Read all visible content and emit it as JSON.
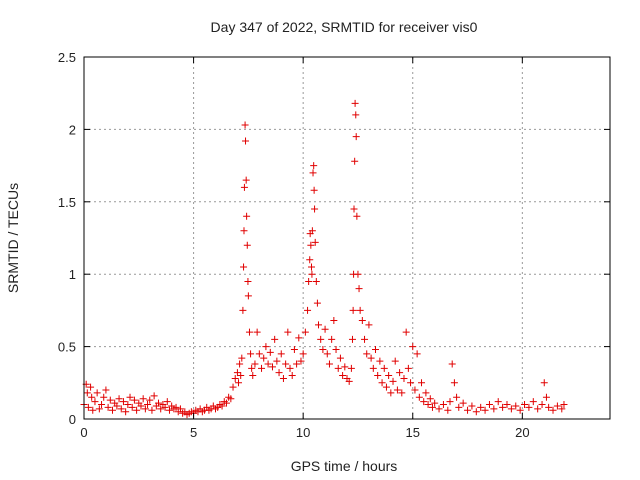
{
  "chart_data": {
    "type": "scatter",
    "title": "Day 347 of 2022, SRMTID for receiver vis0",
    "xlabel": "GPS time / hours",
    "ylabel": "SRMTID / TECUs",
    "xlim": [
      0,
      24
    ],
    "ylim": [
      0,
      2.5
    ],
    "xticks": [
      0,
      5,
      10,
      15,
      20
    ],
    "yticks": [
      0,
      0.5,
      1,
      1.5,
      2,
      2.5
    ],
    "x_tick_labels": [
      "0",
      "5",
      "10",
      "15",
      "20"
    ],
    "y_tick_labels": [
      "0",
      "0.5",
      "1",
      "1.5",
      "2",
      "2.5"
    ],
    "grid": true,
    "marker": "+",
    "color": "#e00000",
    "series": [
      {
        "name": "SRMTID",
        "points": [
          [
            0.0,
            0.1
          ],
          [
            0.1,
            0.24
          ],
          [
            0.15,
            0.18
          ],
          [
            0.2,
            0.08
          ],
          [
            0.3,
            0.22
          ],
          [
            0.35,
            0.15
          ],
          [
            0.4,
            0.06
          ],
          [
            0.5,
            0.12
          ],
          [
            0.6,
            0.18
          ],
          [
            0.7,
            0.07
          ],
          [
            0.8,
            0.1
          ],
          [
            0.9,
            0.15
          ],
          [
            1.0,
            0.2
          ],
          [
            1.1,
            0.08
          ],
          [
            1.2,
            0.13
          ],
          [
            1.3,
            0.06
          ],
          [
            1.4,
            0.11
          ],
          [
            1.5,
            0.09
          ],
          [
            1.6,
            0.14
          ],
          [
            1.7,
            0.07
          ],
          [
            1.8,
            0.12
          ],
          [
            1.9,
            0.05
          ],
          [
            2.0,
            0.1
          ],
          [
            2.1,
            0.15
          ],
          [
            2.2,
            0.08
          ],
          [
            2.3,
            0.13
          ],
          [
            2.4,
            0.06
          ],
          [
            2.5,
            0.11
          ],
          [
            2.6,
            0.09
          ],
          [
            2.7,
            0.14
          ],
          [
            2.8,
            0.07
          ],
          [
            2.9,
            0.1
          ],
          [
            3.0,
            0.13
          ],
          [
            3.1,
            0.06
          ],
          [
            3.2,
            0.16
          ],
          [
            3.3,
            0.09
          ],
          [
            3.4,
            0.11
          ],
          [
            3.5,
            0.07
          ],
          [
            3.6,
            0.1
          ],
          [
            3.7,
            0.08
          ],
          [
            3.8,
            0.12
          ],
          [
            3.9,
            0.06
          ],
          [
            4.0,
            0.09
          ],
          [
            4.1,
            0.07
          ],
          [
            4.2,
            0.08
          ],
          [
            4.3,
            0.05
          ],
          [
            4.4,
            0.07
          ],
          [
            4.5,
            0.04
          ],
          [
            4.6,
            0.05
          ],
          [
            4.7,
            0.03
          ],
          [
            4.8,
            0.04
          ],
          [
            4.9,
            0.05
          ],
          [
            5.0,
            0.04
          ],
          [
            5.1,
            0.06
          ],
          [
            5.2,
            0.05
          ],
          [
            5.3,
            0.07
          ],
          [
            5.4,
            0.05
          ],
          [
            5.5,
            0.06
          ],
          [
            5.6,
            0.08
          ],
          [
            5.7,
            0.06
          ],
          [
            5.8,
            0.07
          ],
          [
            5.9,
            0.09
          ],
          [
            6.0,
            0.07
          ],
          [
            6.1,
            0.08
          ],
          [
            6.2,
            0.1
          ],
          [
            6.3,
            0.09
          ],
          [
            6.4,
            0.12
          ],
          [
            6.5,
            0.11
          ],
          [
            6.6,
            0.15
          ],
          [
            6.7,
            0.14
          ],
          [
            6.8,
            0.22
          ],
          [
            6.9,
            0.28
          ],
          [
            7.0,
            0.32
          ],
          [
            7.05,
            0.25
          ],
          [
            7.1,
            0.38
          ],
          [
            7.15,
            0.3
          ],
          [
            7.2,
            0.42
          ],
          [
            7.25,
            0.75
          ],
          [
            7.28,
            1.05
          ],
          [
            7.3,
            1.3
          ],
          [
            7.32,
            1.6
          ],
          [
            7.35,
            2.03
          ],
          [
            7.37,
            1.92
          ],
          [
            7.4,
            1.65
          ],
          [
            7.42,
            1.4
          ],
          [
            7.45,
            1.2
          ],
          [
            7.48,
            0.95
          ],
          [
            7.5,
            0.85
          ],
          [
            7.55,
            0.6
          ],
          [
            7.6,
            0.45
          ],
          [
            7.65,
            0.35
          ],
          [
            7.7,
            0.3
          ],
          [
            7.8,
            0.38
          ],
          [
            7.9,
            0.6
          ],
          [
            8.0,
            0.45
          ],
          [
            8.1,
            0.35
          ],
          [
            8.2,
            0.42
          ],
          [
            8.3,
            0.5
          ],
          [
            8.4,
            0.38
          ],
          [
            8.5,
            0.46
          ],
          [
            8.6,
            0.36
          ],
          [
            8.7,
            0.55
          ],
          [
            8.8,
            0.4
          ],
          [
            8.9,
            0.32
          ],
          [
            9.0,
            0.45
          ],
          [
            9.1,
            0.28
          ],
          [
            9.2,
            0.38
          ],
          [
            9.3,
            0.6
          ],
          [
            9.4,
            0.35
          ],
          [
            9.5,
            0.3
          ],
          [
            9.6,
            0.48
          ],
          [
            9.7,
            0.38
          ],
          [
            9.8,
            0.56
          ],
          [
            9.9,
            0.4
          ],
          [
            10.0,
            0.45
          ],
          [
            10.1,
            0.6
          ],
          [
            10.2,
            0.75
          ],
          [
            10.25,
            0.95
          ],
          [
            10.3,
            1.1
          ],
          [
            10.32,
            1.28
          ],
          [
            10.35,
            1.2
          ],
          [
            10.38,
            1.05
          ],
          [
            10.4,
            1.0
          ],
          [
            10.42,
            1.3
          ],
          [
            10.45,
            1.7
          ],
          [
            10.48,
            1.75
          ],
          [
            10.5,
            1.58
          ],
          [
            10.52,
            1.45
          ],
          [
            10.55,
            1.22
          ],
          [
            10.6,
            0.95
          ],
          [
            10.65,
            0.8
          ],
          [
            10.7,
            0.65
          ],
          [
            10.8,
            0.55
          ],
          [
            10.9,
            0.48
          ],
          [
            11.0,
            0.62
          ],
          [
            11.1,
            0.45
          ],
          [
            11.2,
            0.38
          ],
          [
            11.3,
            0.55
          ],
          [
            11.4,
            0.68
          ],
          [
            11.5,
            0.48
          ],
          [
            11.6,
            0.35
          ],
          [
            11.7,
            0.42
          ],
          [
            11.8,
            0.3
          ],
          [
            11.9,
            0.36
          ],
          [
            12.0,
            0.28
          ],
          [
            12.1,
            0.26
          ],
          [
            12.2,
            0.35
          ],
          [
            12.25,
            0.55
          ],
          [
            12.28,
            0.75
          ],
          [
            12.3,
            1.0
          ],
          [
            12.32,
            1.45
          ],
          [
            12.35,
            1.78
          ],
          [
            12.37,
            2.18
          ],
          [
            12.4,
            2.1
          ],
          [
            12.42,
            1.95
          ],
          [
            12.45,
            1.4
          ],
          [
            12.5,
            1.0
          ],
          [
            12.55,
            0.9
          ],
          [
            12.6,
            0.75
          ],
          [
            12.7,
            0.68
          ],
          [
            12.8,
            0.55
          ],
          [
            12.9,
            0.45
          ],
          [
            13.0,
            0.65
          ],
          [
            13.1,
            0.42
          ],
          [
            13.2,
            0.35
          ],
          [
            13.3,
            0.48
          ],
          [
            13.4,
            0.3
          ],
          [
            13.5,
            0.4
          ],
          [
            13.6,
            0.25
          ],
          [
            13.7,
            0.35
          ],
          [
            13.8,
            0.22
          ],
          [
            13.9,
            0.3
          ],
          [
            14.0,
            0.18
          ],
          [
            14.1,
            0.26
          ],
          [
            14.2,
            0.4
          ],
          [
            14.3,
            0.2
          ],
          [
            14.4,
            0.32
          ],
          [
            14.5,
            0.18
          ],
          [
            14.6,
            0.28
          ],
          [
            14.7,
            0.6
          ],
          [
            14.8,
            0.35
          ],
          [
            14.9,
            0.25
          ],
          [
            15.0,
            0.5
          ],
          [
            15.1,
            0.2
          ],
          [
            15.2,
            0.45
          ],
          [
            15.3,
            0.15
          ],
          [
            15.4,
            0.25
          ],
          [
            15.5,
            0.12
          ],
          [
            15.6,
            0.18
          ],
          [
            15.7,
            0.1
          ],
          [
            15.8,
            0.14
          ],
          [
            15.9,
            0.08
          ],
          [
            16.0,
            0.11
          ],
          [
            16.2,
            0.07
          ],
          [
            16.4,
            0.1
          ],
          [
            16.6,
            0.06
          ],
          [
            16.7,
            0.12
          ],
          [
            16.8,
            0.38
          ],
          [
            16.9,
            0.25
          ],
          [
            17.0,
            0.15
          ],
          [
            17.1,
            0.08
          ],
          [
            17.3,
            0.11
          ],
          [
            17.5,
            0.06
          ],
          [
            17.7,
            0.09
          ],
          [
            17.9,
            0.05
          ],
          [
            18.1,
            0.08
          ],
          [
            18.3,
            0.06
          ],
          [
            18.5,
            0.1
          ],
          [
            18.7,
            0.07
          ],
          [
            18.9,
            0.12
          ],
          [
            19.1,
            0.08
          ],
          [
            19.3,
            0.1
          ],
          [
            19.5,
            0.07
          ],
          [
            19.7,
            0.09
          ],
          [
            19.9,
            0.06
          ],
          [
            20.1,
            0.1
          ],
          [
            20.3,
            0.08
          ],
          [
            20.5,
            0.12
          ],
          [
            20.7,
            0.07
          ],
          [
            20.9,
            0.1
          ],
          [
            21.0,
            0.25
          ],
          [
            21.1,
            0.15
          ],
          [
            21.2,
            0.08
          ],
          [
            21.4,
            0.06
          ],
          [
            21.6,
            0.09
          ],
          [
            21.8,
            0.07
          ],
          [
            21.9,
            0.1
          ]
        ]
      }
    ]
  }
}
